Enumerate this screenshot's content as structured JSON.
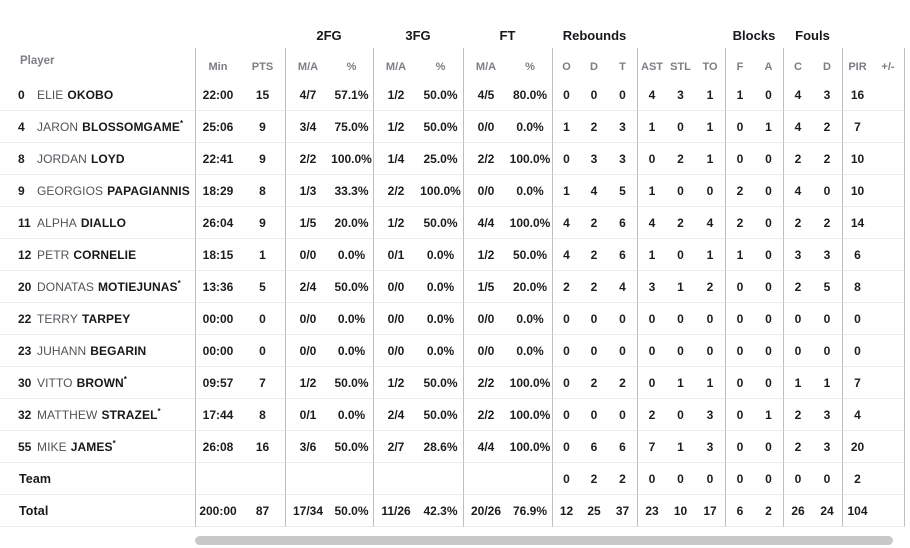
{
  "table": {
    "groups": {
      "fg2": "2FG",
      "fg3": "3FG",
      "ft": "FT",
      "rebounds": "Rebounds",
      "blocks": "Blocks",
      "fouls": "Fouls"
    },
    "headers": {
      "player": "Player",
      "min": "Min",
      "pts": "PTS",
      "ma": "M/A",
      "pct": "%",
      "o": "O",
      "d": "D",
      "t": "T",
      "ast": "AST",
      "stl": "STL",
      "to": "TO",
      "bf": "F",
      "ba": "A",
      "fc": "C",
      "fd": "D",
      "pir": "PIR",
      "pm": "+/-"
    },
    "rows": [
      {
        "type": "player",
        "num": "0",
        "first": "ELIE",
        "last": "OKOBO",
        "star": false,
        "min": "22:00",
        "pts": "15",
        "fg2_ma": "4/7",
        "fg2_pct": "57.1%",
        "fg3_ma": "1/2",
        "fg3_pct": "50.0%",
        "ft_ma": "4/5",
        "ft_pct": "80.0%",
        "ro": "0",
        "rd": "0",
        "rt": "0",
        "ast": "4",
        "stl": "3",
        "to": "1",
        "bf": "1",
        "ba": "0",
        "fc": "4",
        "fd": "3",
        "pir": "16",
        "pm": ""
      },
      {
        "type": "player",
        "num": "4",
        "first": "JARON",
        "last": "BLOSSOMGAME",
        "star": true,
        "min": "25:06",
        "pts": "9",
        "fg2_ma": "3/4",
        "fg2_pct": "75.0%",
        "fg3_ma": "1/2",
        "fg3_pct": "50.0%",
        "ft_ma": "0/0",
        "ft_pct": "0.0%",
        "ro": "1",
        "rd": "2",
        "rt": "3",
        "ast": "1",
        "stl": "0",
        "to": "1",
        "bf": "0",
        "ba": "1",
        "fc": "4",
        "fd": "2",
        "pir": "7",
        "pm": ""
      },
      {
        "type": "player",
        "num": "8",
        "first": "JORDAN",
        "last": "LOYD",
        "star": false,
        "min": "22:41",
        "pts": "9",
        "fg2_ma": "2/2",
        "fg2_pct": "100.0%",
        "fg3_ma": "1/4",
        "fg3_pct": "25.0%",
        "ft_ma": "2/2",
        "ft_pct": "100.0%",
        "ro": "0",
        "rd": "3",
        "rt": "3",
        "ast": "0",
        "stl": "2",
        "to": "1",
        "bf": "0",
        "ba": "0",
        "fc": "2",
        "fd": "2",
        "pir": "10",
        "pm": ""
      },
      {
        "type": "player",
        "num": "9",
        "first": "GEORGIOS",
        "last": "PAPAGIANNIS",
        "star": false,
        "min": "18:29",
        "pts": "8",
        "fg2_ma": "1/3",
        "fg2_pct": "33.3%",
        "fg3_ma": "2/2",
        "fg3_pct": "100.0%",
        "ft_ma": "0/0",
        "ft_pct": "0.0%",
        "ro": "1",
        "rd": "4",
        "rt": "5",
        "ast": "1",
        "stl": "0",
        "to": "0",
        "bf": "2",
        "ba": "0",
        "fc": "4",
        "fd": "0",
        "pir": "10",
        "pm": ""
      },
      {
        "type": "player",
        "num": "11",
        "first": "ALPHA",
        "last": "DIALLO",
        "star": false,
        "min": "26:04",
        "pts": "9",
        "fg2_ma": "1/5",
        "fg2_pct": "20.0%",
        "fg3_ma": "1/2",
        "fg3_pct": "50.0%",
        "ft_ma": "4/4",
        "ft_pct": "100.0%",
        "ro": "4",
        "rd": "2",
        "rt": "6",
        "ast": "4",
        "stl": "2",
        "to": "4",
        "bf": "2",
        "ba": "0",
        "fc": "2",
        "fd": "2",
        "pir": "14",
        "pm": ""
      },
      {
        "type": "player",
        "num": "12",
        "first": "PETR",
        "last": "CORNELIE",
        "star": false,
        "min": "18:15",
        "pts": "1",
        "fg2_ma": "0/0",
        "fg2_pct": "0.0%",
        "fg3_ma": "0/1",
        "fg3_pct": "0.0%",
        "ft_ma": "1/2",
        "ft_pct": "50.0%",
        "ro": "4",
        "rd": "2",
        "rt": "6",
        "ast": "1",
        "stl": "0",
        "to": "1",
        "bf": "1",
        "ba": "0",
        "fc": "3",
        "fd": "3",
        "pir": "6",
        "pm": ""
      },
      {
        "type": "player",
        "num": "20",
        "first": "DONATAS",
        "last": "MOTIEJUNAS",
        "star": true,
        "min": "13:36",
        "pts": "5",
        "fg2_ma": "2/4",
        "fg2_pct": "50.0%",
        "fg3_ma": "0/0",
        "fg3_pct": "0.0%",
        "ft_ma": "1/5",
        "ft_pct": "20.0%",
        "ro": "2",
        "rd": "2",
        "rt": "4",
        "ast": "3",
        "stl": "1",
        "to": "2",
        "bf": "0",
        "ba": "0",
        "fc": "2",
        "fd": "5",
        "pir": "8",
        "pm": ""
      },
      {
        "type": "player",
        "num": "22",
        "first": "TERRY",
        "last": "TARPEY",
        "star": false,
        "min": "00:00",
        "pts": "0",
        "fg2_ma": "0/0",
        "fg2_pct": "0.0%",
        "fg3_ma": "0/0",
        "fg3_pct": "0.0%",
        "ft_ma": "0/0",
        "ft_pct": "0.0%",
        "ro": "0",
        "rd": "0",
        "rt": "0",
        "ast": "0",
        "stl": "0",
        "to": "0",
        "bf": "0",
        "ba": "0",
        "fc": "0",
        "fd": "0",
        "pir": "0",
        "pm": ""
      },
      {
        "type": "player",
        "num": "23",
        "first": "JUHANN",
        "last": "BEGARIN",
        "star": false,
        "min": "00:00",
        "pts": "0",
        "fg2_ma": "0/0",
        "fg2_pct": "0.0%",
        "fg3_ma": "0/0",
        "fg3_pct": "0.0%",
        "ft_ma": "0/0",
        "ft_pct": "0.0%",
        "ro": "0",
        "rd": "0",
        "rt": "0",
        "ast": "0",
        "stl": "0",
        "to": "0",
        "bf": "0",
        "ba": "0",
        "fc": "0",
        "fd": "0",
        "pir": "0",
        "pm": ""
      },
      {
        "type": "player",
        "num": "30",
        "first": "VITTO",
        "last": "BROWN",
        "star": true,
        "min": "09:57",
        "pts": "7",
        "fg2_ma": "1/2",
        "fg2_pct": "50.0%",
        "fg3_ma": "1/2",
        "fg3_pct": "50.0%",
        "ft_ma": "2/2",
        "ft_pct": "100.0%",
        "ro": "0",
        "rd": "2",
        "rt": "2",
        "ast": "0",
        "stl": "1",
        "to": "1",
        "bf": "0",
        "ba": "0",
        "fc": "1",
        "fd": "1",
        "pir": "7",
        "pm": ""
      },
      {
        "type": "player",
        "num": "32",
        "first": "MATTHEW",
        "last": "STRAZEL",
        "star": true,
        "min": "17:44",
        "pts": "8",
        "fg2_ma": "0/1",
        "fg2_pct": "0.0%",
        "fg3_ma": "2/4",
        "fg3_pct": "50.0%",
        "ft_ma": "2/2",
        "ft_pct": "100.0%",
        "ro": "0",
        "rd": "0",
        "rt": "0",
        "ast": "2",
        "stl": "0",
        "to": "3",
        "bf": "0",
        "ba": "1",
        "fc": "2",
        "fd": "3",
        "pir": "4",
        "pm": ""
      },
      {
        "type": "player",
        "num": "55",
        "first": "MIKE",
        "last": "JAMES",
        "star": true,
        "min": "26:08",
        "pts": "16",
        "fg2_ma": "3/6",
        "fg2_pct": "50.0%",
        "fg3_ma": "2/7",
        "fg3_pct": "28.6%",
        "ft_ma": "4/4",
        "ft_pct": "100.0%",
        "ro": "0",
        "rd": "6",
        "rt": "6",
        "ast": "7",
        "stl": "1",
        "to": "3",
        "bf": "0",
        "ba": "0",
        "fc": "2",
        "fd": "3",
        "pir": "20",
        "pm": ""
      },
      {
        "type": "team",
        "num": "",
        "first": "",
        "last": "Team",
        "star": false,
        "min": "",
        "pts": "",
        "fg2_ma": "",
        "fg2_pct": "",
        "fg3_ma": "",
        "fg3_pct": "",
        "ft_ma": "",
        "ft_pct": "",
        "ro": "0",
        "rd": "2",
        "rt": "2",
        "ast": "0",
        "stl": "0",
        "to": "0",
        "bf": "0",
        "ba": "0",
        "fc": "0",
        "fd": "0",
        "pir": "2",
        "pm": ""
      },
      {
        "type": "total",
        "num": "",
        "first": "",
        "last": "Total",
        "star": false,
        "min": "200:00",
        "pts": "87",
        "fg2_ma": "17/34",
        "fg2_pct": "50.0%",
        "fg3_ma": "11/26",
        "fg3_pct": "42.3%",
        "ft_ma": "20/26",
        "ft_pct": "76.9%",
        "ro": "12",
        "rd": "25",
        "rt": "37",
        "ast": "23",
        "stl": "10",
        "to": "17",
        "bf": "6",
        "ba": "2",
        "fc": "26",
        "fd": "24",
        "pir": "104",
        "pm": ""
      }
    ]
  },
  "colors": {
    "ink": "#1b1c1f",
    "header_gray": "#7c7e83",
    "first_name": "#515358",
    "divider": "#bdbec1",
    "row_line": "#ececec",
    "scrollbar": "#c8c8c9"
  }
}
